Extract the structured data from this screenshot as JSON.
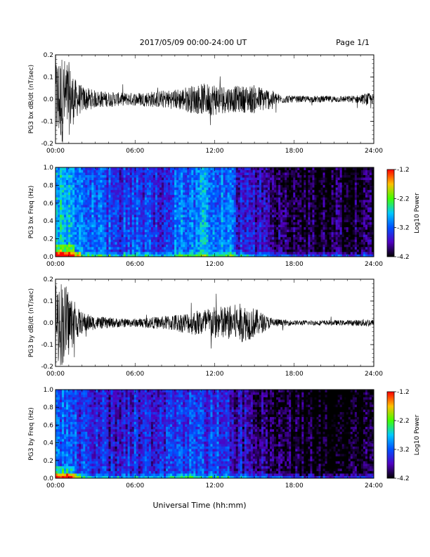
{
  "header": {
    "title": "2017/05/09  00:00-24:00 UT",
    "page": "Page 1/1"
  },
  "footer": {
    "xlabel": "Universal Time (hh:mm)"
  },
  "colorbar": {
    "label": "Log10 Power",
    "ticks": [
      "-1.2",
      "-2.2",
      "-3.2",
      "-4.2"
    ],
    "stops": [
      "#ff0000",
      "#ffc000",
      "#40ff00",
      "#00c8ff",
      "#0050ff",
      "#5000c0",
      "#000000"
    ]
  },
  "chart_data": [
    {
      "type": "line",
      "ylabel": "PG3 bx dB/dt (nT/sec)",
      "xlim": [
        "00:00",
        "24:00"
      ],
      "ylim": [
        -0.2,
        0.2
      ],
      "xticks": [
        "00:00",
        "06:00",
        "12:00",
        "18:00",
        "24:00"
      ],
      "yticks": [
        "0.2",
        "0.1",
        "0.0",
        "-0.1",
        "-0.2"
      ],
      "envelope_hours": [
        0,
        0.5,
        1,
        1.5,
        2,
        3,
        4,
        5,
        6,
        7,
        8,
        9,
        10,
        11,
        12,
        13,
        14,
        15,
        16,
        17,
        18,
        19,
        20,
        21,
        22,
        23,
        23.5,
        24
      ],
      "envelope_amp": [
        0.2,
        0.2,
        0.17,
        0.09,
        0.06,
        0.04,
        0.035,
        0.03,
        0.03,
        0.035,
        0.04,
        0.045,
        0.06,
        0.07,
        0.075,
        0.06,
        0.06,
        0.065,
        0.05,
        0.02,
        0.015,
        0.015,
        0.015,
        0.015,
        0.015,
        0.02,
        0.03,
        0.02
      ]
    },
    {
      "type": "heatmap",
      "ylabel": "PG3 bx Freq (Hz)",
      "xlim": [
        "00:00",
        "24:00"
      ],
      "ylim": [
        0.0,
        1.0
      ],
      "xticks": [
        "00:00",
        "06:00",
        "12:00",
        "18:00",
        "24:00"
      ],
      "yticks": [
        "1.0",
        "0.8",
        "0.6",
        "0.4",
        "0.2",
        "0.0"
      ],
      "color_range": [
        -4.2,
        -1.2
      ],
      "hours": [
        0,
        1,
        2,
        3,
        4,
        5,
        6,
        7,
        8,
        9,
        10,
        11,
        12,
        13,
        14,
        15,
        16,
        17,
        18,
        19,
        20,
        21,
        22,
        23,
        24
      ],
      "power_level": [
        -2.7,
        -2.8,
        -3.0,
        -3.1,
        -3.2,
        -3.3,
        -3.2,
        -3.3,
        -3.3,
        -3.1,
        -3.0,
        -2.9,
        -2.9,
        -3.0,
        -3.5,
        -3.6,
        -3.6,
        -3.8,
        -3.9,
        -4.0,
        -4.0,
        -4.0,
        -4.0,
        -4.0,
        -4.0
      ]
    },
    {
      "type": "line",
      "ylabel": "PG3 by dB/dt (nT/sec)",
      "xlim": [
        "00:00",
        "24:00"
      ],
      "ylim": [
        -0.2,
        0.2
      ],
      "xticks": [
        "00:00",
        "06:00",
        "12:00",
        "18:00",
        "24:00"
      ],
      "yticks": [
        "0.2",
        "0.1",
        "0.0",
        "-0.1",
        "-0.2"
      ],
      "envelope_hours": [
        0,
        0.5,
        1,
        1.5,
        2,
        3,
        4,
        5,
        6,
        7,
        8,
        9,
        10,
        11,
        12,
        13,
        14,
        15,
        16,
        17,
        18,
        19,
        20,
        21,
        22,
        23,
        23.5,
        24
      ],
      "envelope_amp": [
        0.2,
        0.2,
        0.16,
        0.08,
        0.05,
        0.03,
        0.025,
        0.02,
        0.02,
        0.025,
        0.03,
        0.04,
        0.05,
        0.065,
        0.075,
        0.08,
        0.09,
        0.07,
        0.03,
        0.015,
        0.012,
        0.012,
        0.012,
        0.012,
        0.012,
        0.015,
        0.02,
        0.015
      ]
    },
    {
      "type": "heatmap",
      "ylabel": "PG3 by Freq (Hz)",
      "xlim": [
        "00:00",
        "24:00"
      ],
      "ylim": [
        0.0,
        1.0
      ],
      "xticks": [
        "00:00",
        "06:00",
        "12:00",
        "18:00",
        "24:00"
      ],
      "yticks": [
        "1.0",
        "0.8",
        "0.6",
        "0.4",
        "0.2",
        "0.0"
      ],
      "color_range": [
        -4.2,
        -1.2
      ],
      "hours": [
        0,
        1,
        2,
        3,
        4,
        5,
        6,
        7,
        8,
        9,
        10,
        11,
        12,
        13,
        14,
        15,
        16,
        17,
        18,
        19,
        20,
        21,
        22,
        23,
        24
      ],
      "power_level": [
        -3.0,
        -3.1,
        -3.3,
        -3.4,
        -3.5,
        -3.5,
        -3.4,
        -3.5,
        -3.4,
        -3.3,
        -3.2,
        -3.2,
        -3.3,
        -3.4,
        -3.6,
        -3.7,
        -3.8,
        -3.9,
        -4.0,
        -4.1,
        -4.1,
        -4.1,
        -4.1,
        -4.1,
        -4.1
      ]
    }
  ]
}
